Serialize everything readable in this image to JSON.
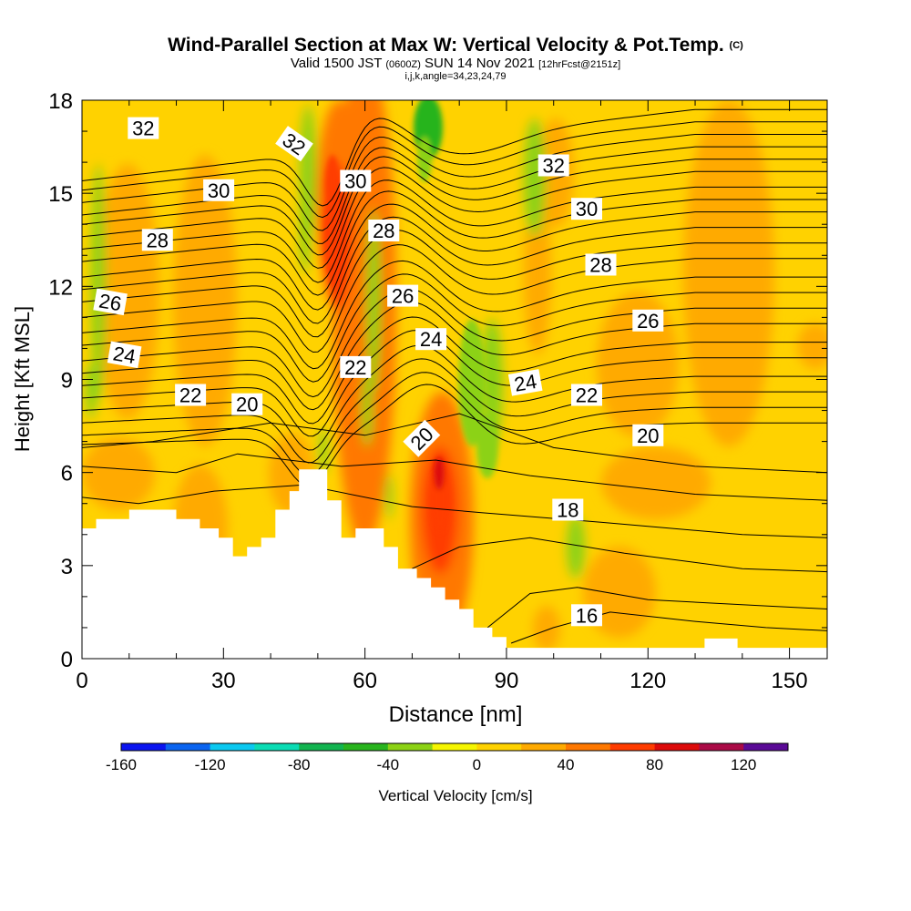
{
  "header": {
    "title": "Wind-Parallel Section at Max W: Vertical Velocity & Pot.Temp.",
    "copyright": "(C)",
    "valid_prefix": "Valid 1500 JST",
    "valid_z": "(0600Z)",
    "valid_date": "SUN 14 Nov 2021",
    "forecast": "[12hrFcst@2151z]",
    "params": "i,j,k,angle=34,23,24,79"
  },
  "colorbar": {
    "title": "Vertical Velocity [cm/s]",
    "colors": [
      "#0a14f0",
      "#0a64f0",
      "#0ac8f0",
      "#0adcb4",
      "#12b450",
      "#28b41e",
      "#8cd214",
      "#f5f500",
      "#ffd200",
      "#ffaa00",
      "#ff7800",
      "#ff3c00",
      "#dc0a0a",
      "#aa0a46",
      "#5a0a96"
    ],
    "bounds": [
      -160,
      -140,
      -120,
      -100,
      -80,
      -60,
      -40,
      -20,
      0,
      20,
      40,
      60,
      80,
      100,
      120,
      140
    ],
    "tick_labels": [
      "-160",
      "-120",
      "-80",
      "-40",
      "0",
      "40",
      "80",
      "120"
    ],
    "tick_values": [
      -160,
      -120,
      -80,
      -40,
      0,
      40,
      80,
      120
    ]
  },
  "chart_data": {
    "type": "heatmap",
    "title": "Wind-Parallel Section at Max W: Vertical Velocity & Pot.Temp.",
    "xlabel": "Distance [nm]",
    "ylabel": "Height [Kft MSL]",
    "xlim": [
      0,
      158
    ],
    "ylim": [
      0,
      18
    ],
    "x_ticks": [
      "0",
      "30",
      "60",
      "90",
      "120",
      "150"
    ],
    "x_tick_values": [
      0,
      30,
      60,
      90,
      120,
      150
    ],
    "y_ticks": [
      "0",
      "3",
      "6",
      "9",
      "12",
      "15",
      "18"
    ],
    "y_tick_values": [
      0,
      3,
      6,
      9,
      12,
      15,
      18
    ],
    "field": "vertical velocity (cm/s)",
    "contour_field": "potential temperature",
    "terrain_kft": [
      [
        0,
        4.2
      ],
      [
        3,
        4.2
      ],
      [
        3,
        4.5
      ],
      [
        10,
        4.5
      ],
      [
        10,
        4.8
      ],
      [
        20,
        4.8
      ],
      [
        20,
        4.5
      ],
      [
        25,
        4.5
      ],
      [
        25,
        4.2
      ],
      [
        29,
        4.2
      ],
      [
        29,
        3.9
      ],
      [
        32,
        3.9
      ],
      [
        32,
        3.3
      ],
      [
        35,
        3.3
      ],
      [
        35,
        3.6
      ],
      [
        38,
        3.6
      ],
      [
        38,
        3.9
      ],
      [
        41,
        3.9
      ],
      [
        41,
        4.8
      ],
      [
        44,
        4.8
      ],
      [
        44,
        5.4
      ],
      [
        46,
        5.4
      ],
      [
        46,
        6.1
      ],
      [
        52,
        6.1
      ],
      [
        52,
        5.1
      ],
      [
        55,
        5.1
      ],
      [
        55,
        3.9
      ],
      [
        58,
        3.9
      ],
      [
        58,
        4.2
      ],
      [
        64,
        4.2
      ],
      [
        64,
        3.6
      ],
      [
        67,
        3.6
      ],
      [
        67,
        2.9
      ],
      [
        71,
        2.9
      ],
      [
        71,
        2.6
      ],
      [
        74,
        2.6
      ],
      [
        74,
        2.3
      ],
      [
        77,
        2.3
      ],
      [
        77,
        1.9
      ],
      [
        80,
        1.9
      ],
      [
        80,
        1.6
      ],
      [
        83,
        1.6
      ],
      [
        83,
        1.0
      ],
      [
        87,
        1.0
      ],
      [
        87,
        0.7
      ],
      [
        90,
        0.7
      ],
      [
        90,
        0.35
      ],
      [
        132,
        0.35
      ],
      [
        132,
        0.65
      ],
      [
        139,
        0.65
      ],
      [
        139,
        0.35
      ],
      [
        158,
        0.35
      ],
      [
        158,
        0
      ],
      [
        0,
        0
      ]
    ],
    "features": [
      {
        "kind": "updraft",
        "x": 54,
        "y": 13.5,
        "peak_cms": 80
      },
      {
        "kind": "updraft",
        "x": 75,
        "y": 6,
        "peak_cms": 80
      },
      {
        "kind": "downdraft",
        "x": 72,
        "y": 17.5,
        "peak_cms": -40
      },
      {
        "kind": "downdraft",
        "x": 86,
        "y": 6.5,
        "peak_cms": -30
      },
      {
        "kind": "downdraft",
        "x": 105,
        "y": 3.5,
        "peak_cms": -30
      }
    ],
    "isentrope_labels": [
      {
        "text": "32",
        "x": 13,
        "y": 17.1,
        "angle": 0
      },
      {
        "text": "32",
        "x": 45,
        "y": 16.6,
        "angle": 35
      },
      {
        "text": "32",
        "x": 100,
        "y": 15.9,
        "angle": 0
      },
      {
        "text": "30",
        "x": 29,
        "y": 15.1,
        "angle": 0
      },
      {
        "text": "30",
        "x": 58,
        "y": 15.4,
        "angle": 0
      },
      {
        "text": "30",
        "x": 107,
        "y": 14.5,
        "angle": 0
      },
      {
        "text": "28",
        "x": 16,
        "y": 13.5,
        "angle": 0
      },
      {
        "text": "28",
        "x": 64,
        "y": 13.8,
        "angle": 0
      },
      {
        "text": "28",
        "x": 110,
        "y": 12.7,
        "angle": 0
      },
      {
        "text": "26",
        "x": 6,
        "y": 11.5,
        "angle": 10
      },
      {
        "text": "26",
        "x": 68,
        "y": 11.7,
        "angle": 0
      },
      {
        "text": "26",
        "x": 120,
        "y": 10.9,
        "angle": 0
      },
      {
        "text": "24",
        "x": 9,
        "y": 9.8,
        "angle": 10
      },
      {
        "text": "24",
        "x": 74,
        "y": 10.3,
        "angle": 0
      },
      {
        "text": "24",
        "x": 94,
        "y": 8.9,
        "angle": -10
      },
      {
        "text": "22",
        "x": 23,
        "y": 8.5,
        "angle": 0
      },
      {
        "text": "22",
        "x": 58,
        "y": 9.4,
        "angle": 0
      },
      {
        "text": "22",
        "x": 107,
        "y": 8.5,
        "angle": 0
      },
      {
        "text": "20",
        "x": 35,
        "y": 8.2,
        "angle": 0
      },
      {
        "text": "20",
        "x": 72,
        "y": 7.1,
        "angle": -45
      },
      {
        "text": "20",
        "x": 120,
        "y": 7.2,
        "angle": 0
      },
      {
        "text": "18",
        "x": 103,
        "y": 4.8,
        "angle": 0
      },
      {
        "text": "16",
        "x": 107,
        "y": 1.4,
        "angle": 0
      }
    ]
  }
}
